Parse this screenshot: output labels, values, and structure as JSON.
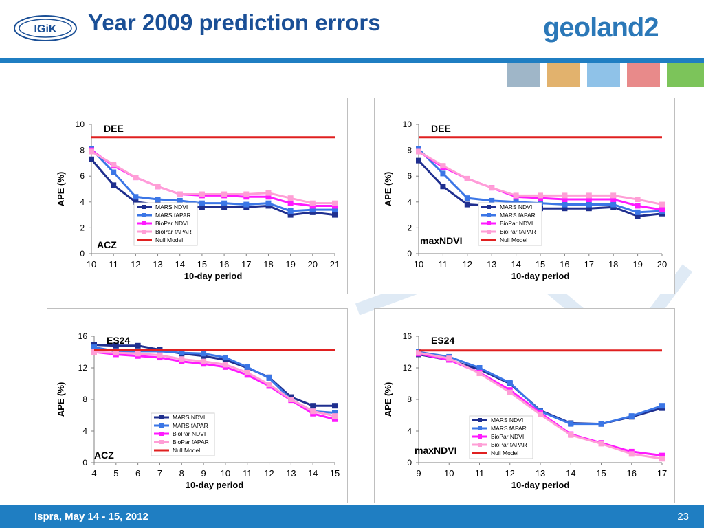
{
  "header": {
    "title": "Year 2009 prediction errors",
    "logo_left": "IGiK",
    "brand_text": "geoland",
    "brand_num": "2"
  },
  "footer": {
    "text": "Ispra, May 14 - 15, 2012",
    "page": "23"
  },
  "colors": {
    "accent": "#1f7ec2",
    "title": "#1a4f96",
    "mars_ndvi": "#1f2f8f",
    "mars_fapar": "#3b76e6",
    "biopar_ndvi": "#ff19ff",
    "biopar_fapar": "#ff9ed6",
    "null_model": "#e02020"
  },
  "chart_data": [
    {
      "type": "line",
      "crop": "DEE",
      "region": "ACZ",
      "xlabel": "10-day period",
      "ylabel": "APE (%)",
      "x": [
        10,
        11,
        12,
        13,
        14,
        15,
        16,
        17,
        18,
        19,
        20,
        21
      ],
      "ylim": [
        0,
        10
      ],
      "yticks": [
        0,
        2,
        4,
        6,
        8,
        10
      ],
      "legend": "bottom-center",
      "series": [
        {
          "name": "MARS NDVI",
          "color": "#1f2f8f",
          "values": [
            7.3,
            5.3,
            4.0,
            3.8,
            3.7,
            3.6,
            3.6,
            3.6,
            3.7,
            3.0,
            3.2,
            3.0
          ]
        },
        {
          "name": "MARS fAPAR",
          "color": "#3b76e6",
          "values": [
            8.1,
            6.3,
            4.4,
            4.2,
            4.1,
            3.9,
            3.9,
            3.8,
            3.9,
            3.3,
            3.4,
            3.4
          ]
        },
        {
          "name": "BioPar NDVI",
          "color": "#ff19ff",
          "values": [
            8.0,
            6.8,
            5.9,
            5.2,
            4.6,
            4.5,
            4.5,
            4.4,
            4.4,
            3.9,
            3.7,
            3.7
          ]
        },
        {
          "name": "BioPar fAPAR",
          "color": "#ff9ed6",
          "values": [
            7.9,
            6.9,
            5.9,
            5.2,
            4.6,
            4.6,
            4.6,
            4.6,
            4.7,
            4.3,
            3.9,
            3.9
          ]
        },
        {
          "name": "Null Model",
          "color": "#e02020",
          "values": [
            9.0,
            9.0,
            9.0,
            9.0,
            9.0,
            9.0,
            9.0,
            9.0,
            9.0,
            9.0,
            9.0,
            9.0
          ],
          "markers": false
        }
      ]
    },
    {
      "type": "line",
      "crop": "DEE",
      "region": "maxNDVI",
      "xlabel": "10-day period",
      "ylabel": "APE (%)",
      "x": [
        10,
        11,
        12,
        13,
        14,
        15,
        16,
        17,
        18,
        19,
        20
      ],
      "ylim": [
        0,
        10
      ],
      "yticks": [
        0,
        2,
        4,
        6,
        8,
        10
      ],
      "legend": "bottom-right",
      "series": [
        {
          "name": "MARS NDVI",
          "color": "#1f2f8f",
          "values": [
            7.2,
            5.2,
            3.8,
            3.7,
            3.6,
            3.5,
            3.5,
            3.5,
            3.6,
            2.9,
            3.1
          ]
        },
        {
          "name": "MARS fAPAR",
          "color": "#3b76e6",
          "values": [
            8.1,
            6.2,
            4.3,
            4.1,
            4.0,
            3.9,
            3.8,
            3.8,
            3.8,
            3.2,
            3.3
          ]
        },
        {
          "name": "BioPar NDVI",
          "color": "#ff19ff",
          "values": [
            7.9,
            6.7,
            5.8,
            5.1,
            4.4,
            4.3,
            4.2,
            4.2,
            4.2,
            3.7,
            3.4
          ]
        },
        {
          "name": "BioPar fAPAR",
          "color": "#ff9ed6",
          "values": [
            7.9,
            6.8,
            5.8,
            5.1,
            4.5,
            4.5,
            4.5,
            4.5,
            4.5,
            4.2,
            3.8
          ]
        },
        {
          "name": "Null Model",
          "color": "#e02020",
          "values": [
            9.0,
            9.0,
            9.0,
            9.0,
            9.0,
            9.0,
            9.0,
            9.0,
            9.0,
            9.0,
            9.0
          ],
          "markers": false
        }
      ]
    },
    {
      "type": "line",
      "crop": "ES24",
      "region": "ACZ",
      "xlabel": "10-day period",
      "ylabel": "APE (%)",
      "x": [
        4,
        5,
        6,
        7,
        8,
        9,
        10,
        11,
        12,
        13,
        14,
        15
      ],
      "ylim": [
        0,
        16
      ],
      "yticks": [
        0,
        4,
        8,
        12,
        16
      ],
      "legend": "bottom-center",
      "series": [
        {
          "name": "MARS NDVI",
          "color": "#1f2f8f",
          "values": [
            14.9,
            14.8,
            14.8,
            14.3,
            13.8,
            13.5,
            13.0,
            12.0,
            10.8,
            8.3,
            7.2,
            7.2
          ]
        },
        {
          "name": "MARS fAPAR",
          "color": "#3b76e6",
          "values": [
            14.6,
            14.1,
            14.1,
            14.1,
            13.9,
            13.8,
            13.3,
            12.1,
            10.7,
            8.0,
            6.5,
            6.3
          ]
        },
        {
          "name": "BioPar NDVI",
          "color": "#ff19ff",
          "values": [
            14.0,
            13.7,
            13.5,
            13.3,
            12.8,
            12.5,
            12.1,
            11.1,
            9.7,
            7.9,
            6.2,
            5.5
          ]
        },
        {
          "name": "BioPar fAPAR",
          "color": "#ff9ed6",
          "values": [
            14.0,
            13.9,
            13.8,
            13.6,
            13.1,
            12.8,
            12.4,
            11.4,
            9.9,
            8.0,
            6.5,
            5.9
          ]
        },
        {
          "name": "Null Model",
          "color": "#e02020",
          "values": [
            14.3,
            14.3,
            14.3,
            14.3,
            14.3,
            14.3,
            14.3,
            14.3,
            14.3,
            14.3,
            14.3,
            14.3
          ],
          "markers": false
        }
      ]
    },
    {
      "type": "line",
      "crop": "ES24",
      "region": "maxNDVI",
      "xlabel": "10-day period",
      "ylabel": "APE (%)",
      "x": [
        9,
        10,
        11,
        12,
        13,
        14,
        15,
        16,
        17
      ],
      "ylim": [
        0,
        16
      ],
      "yticks": [
        0,
        4,
        8,
        12,
        16
      ],
      "legend": "bottom-right",
      "series": [
        {
          "name": "MARS NDVI",
          "color": "#1f2f8f",
          "values": [
            13.7,
            13.0,
            11.8,
            10.0,
            6.6,
            5.0,
            4.9,
            5.8,
            6.9
          ]
        },
        {
          "name": "MARS fAPAR",
          "color": "#3b76e6",
          "values": [
            14.0,
            13.4,
            12.0,
            10.1,
            6.5,
            4.9,
            4.9,
            5.9,
            7.2
          ]
        },
        {
          "name": "BioPar NDVI",
          "color": "#ff19ff",
          "values": [
            13.8,
            13.0,
            11.4,
            9.2,
            6.3,
            3.6,
            2.5,
            1.4,
            0.9
          ]
        },
        {
          "name": "BioPar fAPAR",
          "color": "#ff9ed6",
          "values": [
            13.9,
            13.2,
            11.3,
            8.9,
            6.1,
            3.5,
            2.4,
            1.1,
            0.5
          ]
        },
        {
          "name": "Null Model",
          "color": "#e02020",
          "values": [
            14.2,
            14.2,
            14.2,
            14.2,
            14.2,
            14.2,
            14.2,
            14.2,
            14.2
          ],
          "markers": false
        }
      ]
    }
  ]
}
